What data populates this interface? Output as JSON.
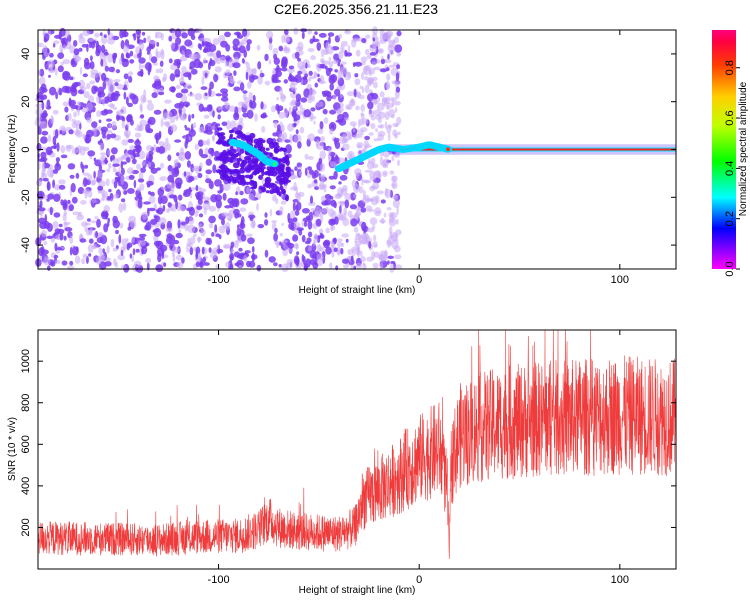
{
  "title": "C2E6.2025.356.21.11.E23",
  "colors": {
    "noise": "#7a3cf0",
    "noise_light": "#c9a8f7",
    "snr_line": "#ef3b3b",
    "colorbar": [
      "#ff00ff",
      "#8000ff",
      "#0000ff",
      "#00ffff",
      "#00ff00",
      "#ffff00",
      "#ff8000",
      "#ff0000",
      "#ff0080"
    ]
  },
  "chart_data": [
    {
      "type": "heatmap",
      "title": "C2E6.2025.356.21.11.E23",
      "xlabel": "Height of straight line (km)",
      "ylabel": "Frequency (Hz)",
      "xlim": [
        -190,
        128
      ],
      "ylim": [
        -50,
        50
      ],
      "xticks": [
        -100,
        0,
        100
      ],
      "yticks": [
        -40,
        -20,
        0,
        20,
        40
      ],
      "colorbar": {
        "label": "Normalized spectral amplitude",
        "range": [
          0,
          0.95
        ],
        "ticks": [
          "0.0",
          "0.2",
          "0.4",
          "0.6",
          "0.8"
        ]
      },
      "signal_track": [
        {
          "x": -93,
          "y": 3
        },
        {
          "x": -88,
          "y": 2
        },
        {
          "x": -84,
          "y": 0
        },
        {
          "x": -80,
          "y": -2
        },
        {
          "x": -76,
          "y": -5
        },
        {
          "x": -72,
          "y": -6
        },
        {
          "x": -40,
          "y": -8
        },
        {
          "x": -35,
          "y": -6
        },
        {
          "x": -30,
          "y": -4
        },
        {
          "x": -25,
          "y": -2
        },
        {
          "x": -20,
          "y": 0
        },
        {
          "x": -15,
          "y": 1
        },
        {
          "x": -8,
          "y": 0
        },
        {
          "x": 0,
          "y": 1
        },
        {
          "x": 5,
          "y": 2
        },
        {
          "x": 10,
          "y": 1
        },
        {
          "x": 15,
          "y": 0
        },
        {
          "x": 128,
          "y": 0
        }
      ],
      "grid": false
    },
    {
      "type": "line",
      "xlabel": "Height of straight line (km)",
      "ylabel": "SNR (10 * v/v)",
      "xlim": [
        -190,
        128
      ],
      "ylim": [
        0,
        1150
      ],
      "xticks": [
        -100,
        0,
        100
      ],
      "yticks": [
        200,
        400,
        600,
        800,
        1000
      ],
      "series": [
        {
          "x": [
            -190,
            -160,
            -130,
            -110,
            -90,
            -80,
            -75,
            -70,
            -60,
            -50,
            -40,
            -32,
            -28,
            -20,
            -10,
            0,
            10,
            14,
            15,
            16,
            20,
            30,
            40,
            60,
            80,
            100,
            128
          ],
          "y": [
            150,
            145,
            140,
            155,
            160,
            190,
            240,
            200,
            180,
            175,
            170,
            200,
            330,
            380,
            450,
            530,
            580,
            380,
            80,
            500,
            640,
            680,
            700,
            720,
            730,
            740,
            730
          ]
        }
      ],
      "grid": false
    }
  ]
}
